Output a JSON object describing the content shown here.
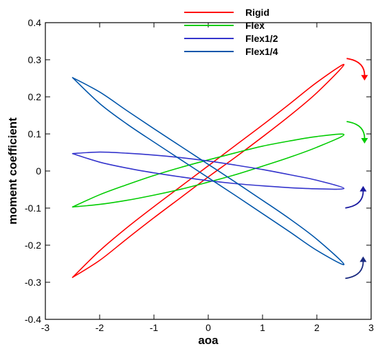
{
  "chart_data": {
    "type": "line",
    "title": "",
    "xlabel": "aoa",
    "ylabel": "moment coefficient",
    "xlim": [
      -3,
      3
    ],
    "ylim": [
      -0.4,
      0.4
    ],
    "xticks": [
      -3,
      -2,
      -1,
      0,
      1,
      2,
      3
    ],
    "yticks": [
      -0.4,
      -0.3,
      -0.2,
      -0.1,
      0,
      0.1,
      0.2,
      0.3,
      0.4
    ],
    "xtick_labels": [
      "-3",
      "-2",
      "-1",
      "0",
      "1",
      "2",
      "3"
    ],
    "ytick_labels": [
      "-0.4",
      "-0.3",
      "-0.2",
      "-0.1",
      "0",
      "0.1",
      "0.2",
      "0.3",
      "0.4"
    ],
    "grid": false,
    "legend_position": "top-right",
    "series": [
      {
        "name": "Rigid",
        "color": "#ff0000",
        "x": [
          -2.5,
          -2.0,
          -1.5,
          -1.0,
          -0.5,
          0.0,
          0.5,
          1.0,
          1.5,
          2.0,
          2.5,
          2.0,
          1.5,
          1.0,
          0.5,
          0.0,
          -0.5,
          -1.0,
          -1.5,
          -2.0,
          -2.5
        ],
        "y": [
          -0.287,
          -0.215,
          -0.153,
          -0.096,
          -0.041,
          0.014,
          0.069,
          0.124,
          0.181,
          0.239,
          0.287,
          0.211,
          0.149,
          0.092,
          0.037,
          -0.016,
          -0.071,
          -0.126,
          -0.183,
          -0.241,
          -0.287
        ],
        "rotation": "clockwise"
      },
      {
        "name": "Flex",
        "color": "#00cc00",
        "x": [
          -2.5,
          -2.0,
          -1.5,
          -1.0,
          -0.5,
          0.0,
          0.5,
          1.0,
          1.5,
          2.0,
          2.5,
          2.0,
          1.5,
          1.0,
          0.5,
          0.0,
          -0.5,
          -1.0,
          -1.5,
          -2.0,
          -2.5
        ],
        "y": [
          -0.097,
          -0.064,
          -0.037,
          -0.012,
          0.01,
          0.03,
          0.049,
          0.067,
          0.081,
          0.093,
          0.098,
          0.064,
          0.037,
          0.013,
          -0.01,
          -0.03,
          -0.049,
          -0.065,
          -0.079,
          -0.09,
          -0.097
        ],
        "rotation": "clockwise"
      },
      {
        "name": "Flex1/2",
        "color": "#3333cc",
        "x": [
          -2.5,
          -2.0,
          -1.5,
          -1.0,
          -0.5,
          0.0,
          0.5,
          1.0,
          1.5,
          2.0,
          2.5,
          2.0,
          1.5,
          1.0,
          0.5,
          0.0,
          -0.5,
          -1.0,
          -1.5,
          -2.0,
          -2.5
        ],
        "y": [
          0.047,
          0.024,
          0.008,
          -0.005,
          -0.016,
          -0.026,
          -0.034,
          -0.04,
          -0.045,
          -0.048,
          -0.047,
          -0.025,
          -0.01,
          0.004,
          0.016,
          0.027,
          0.036,
          0.043,
          0.048,
          0.051,
          0.047
        ],
        "rotation": "counterclockwise"
      },
      {
        "name": "Flex1/4",
        "color": "#0055aa",
        "x": [
          -2.5,
          -2.0,
          -1.5,
          -1.0,
          -0.5,
          0.0,
          0.5,
          1.0,
          1.5,
          2.0,
          2.5,
          2.0,
          1.5,
          1.0,
          0.5,
          0.0,
          -0.5,
          -1.0,
          -1.5,
          -2.0,
          -2.5
        ],
        "y": [
          0.252,
          0.182,
          0.127,
          0.078,
          0.03,
          -0.018,
          -0.066,
          -0.115,
          -0.164,
          -0.214,
          -0.252,
          -0.184,
          -0.129,
          -0.079,
          -0.03,
          0.018,
          0.066,
          0.114,
          0.163,
          0.213,
          0.252
        ],
        "rotation": "counterclockwise"
      }
    ],
    "annotations": [
      {
        "type": "rotation-arrow",
        "series": "Rigid",
        "direction": "clockwise",
        "color": "#ff0000",
        "at": [
          2.6,
          0.27
        ]
      },
      {
        "type": "rotation-arrow",
        "series": "Flex",
        "direction": "clockwise",
        "color": "#00cc00",
        "at": [
          2.6,
          0.1
        ]
      },
      {
        "type": "rotation-arrow",
        "series": "Flex1/2",
        "direction": "counterclockwise",
        "color": "#1a1aa0",
        "at": [
          2.6,
          -0.07
        ]
      },
      {
        "type": "rotation-arrow",
        "series": "Flex1/4",
        "direction": "counterclockwise",
        "color": "#1a2a80",
        "at": [
          2.6,
          -0.26
        ]
      }
    ]
  }
}
